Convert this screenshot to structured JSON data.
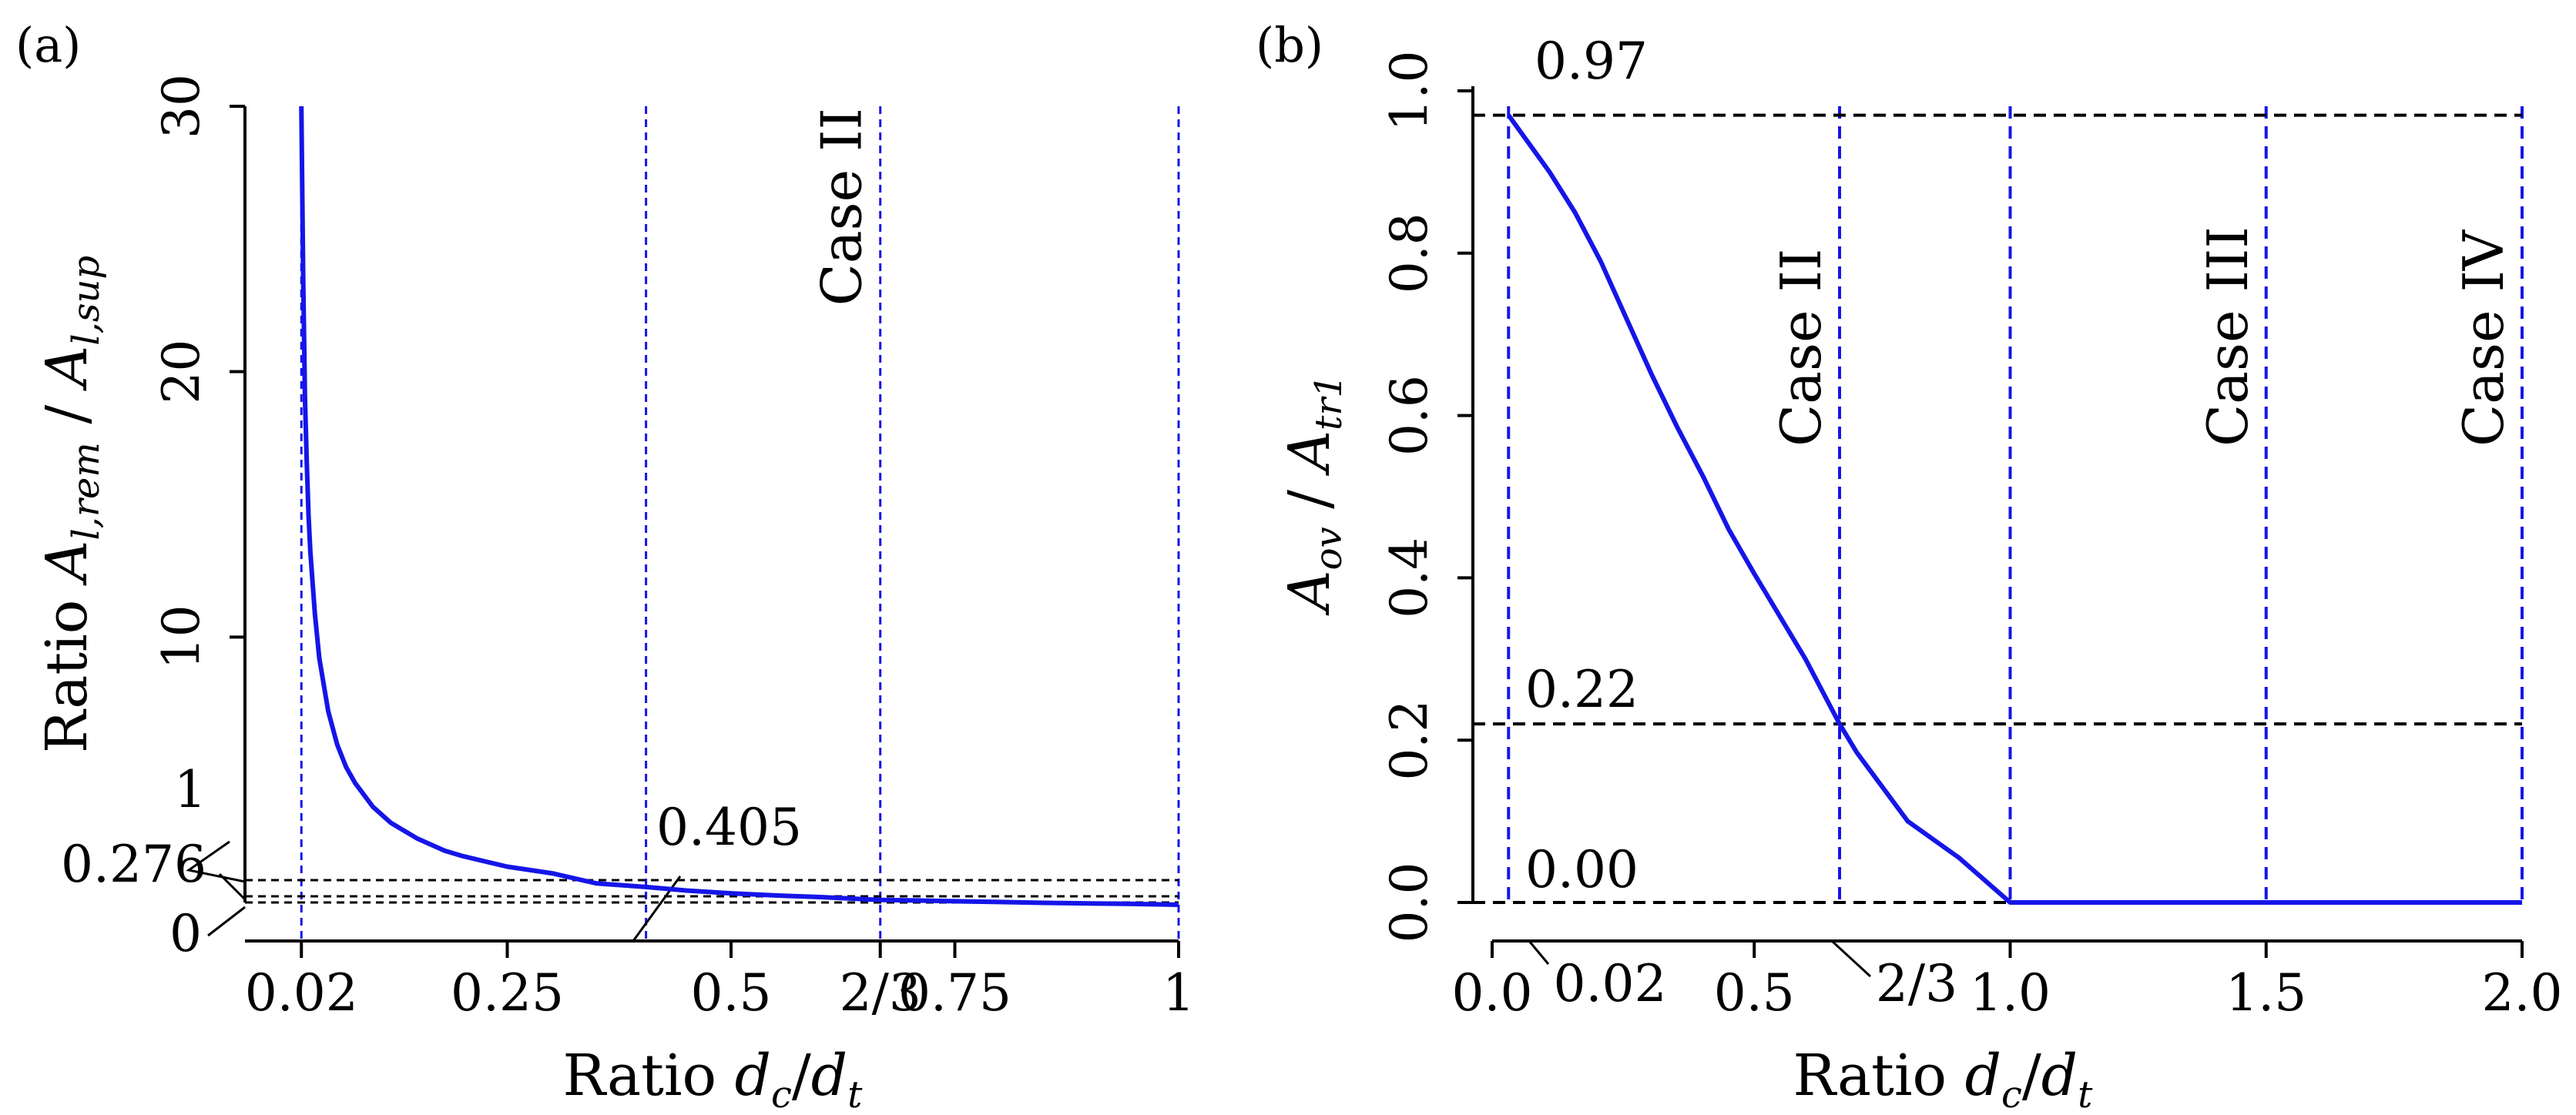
{
  "colors": {
    "curve": "#1515e8",
    "guide_blue": "#1515e8",
    "guide_black": "#000000",
    "axis": "#000000"
  },
  "chart_data": [
    {
      "type": "line",
      "panel_label": "(a)",
      "xlabel": "Ratio d_c/d_t",
      "ylabel": "Ratio A_l,rem / A_l,sup",
      "xlim": [
        0.0,
        1.0
      ],
      "ylim": [
        0,
        30
      ],
      "x_ticks": [
        {
          "value": 0.02,
          "label": "0.02"
        },
        {
          "value": 0.25,
          "label": "0.25"
        },
        {
          "value": 0.5,
          "label": "0.5"
        },
        {
          "value": 0.6667,
          "label": "2/3"
        },
        {
          "value": 0.75,
          "label": "0.75"
        },
        {
          "value": 1.0,
          "label": "1"
        }
      ],
      "y_ticks": [
        {
          "value": 10,
          "label": "10"
        },
        {
          "value": 20,
          "label": "20"
        },
        {
          "value": 30,
          "label": "30"
        }
      ],
      "y_annotations": [
        {
          "value": 1.0,
          "label": "1"
        },
        {
          "value": 0.276,
          "label": "0.276"
        },
        {
          "value": 0.0,
          "label": "0"
        }
      ],
      "horizontal_guides": [
        1.0,
        0.405,
        0.276
      ],
      "vertical_guides": [
        0.02,
        0.405,
        0.6667,
        1.0
      ],
      "point_annotations": [
        {
          "x": 0.405,
          "y": 1.0,
          "label": "0.405"
        }
      ],
      "case_labels": [
        {
          "x": 0.6667,
          "label": "Case II"
        }
      ],
      "series": [
        {
          "name": "A_l,rem / A_l,sup",
          "x": [
            0.02,
            0.022,
            0.024,
            0.026,
            0.028,
            0.03,
            0.035,
            0.04,
            0.05,
            0.06,
            0.07,
            0.08,
            0.1,
            0.12,
            0.15,
            0.18,
            0.2,
            0.25,
            0.3,
            0.35,
            0.405,
            0.45,
            0.5,
            0.55,
            0.6,
            0.6667,
            0.7,
            0.75,
            0.8,
            0.85,
            0.9,
            0.95,
            1.0
          ],
          "y": [
            30.0,
            23.5,
            19.0,
            16.6,
            14.6,
            13.2,
            10.9,
            9.2,
            7.2,
            5.95,
            5.1,
            4.5,
            3.6,
            3.0,
            2.4,
            1.95,
            1.75,
            1.35,
            1.1,
            0.88,
            0.75,
            0.62,
            0.52,
            0.44,
            0.38,
            0.276,
            0.26,
            0.23,
            0.2,
            0.17,
            0.15,
            0.13,
            0.1
          ]
        }
      ]
    },
    {
      "type": "line",
      "panel_label": "(b)",
      "xlabel": "Ratio d_c/d_t",
      "ylabel": "A_ov / A_tr1",
      "xlim": [
        0.0,
        2.0
      ],
      "ylim": [
        0.0,
        1.0
      ],
      "x_ticks": [
        {
          "value": 0.0,
          "label": "0.0"
        },
        {
          "value": 0.5,
          "label": "0.5"
        },
        {
          "value": 1.0,
          "label": "1.0"
        },
        {
          "value": 1.5,
          "label": "1.5"
        },
        {
          "value": 2.0,
          "label": "2.0"
        }
      ],
      "x_annotations": [
        {
          "value": 0.02,
          "label": "0.02"
        },
        {
          "value": 0.6667,
          "label": "2/3"
        }
      ],
      "y_ticks": [
        {
          "value": 0.0,
          "label": "0.0"
        },
        {
          "value": 0.2,
          "label": "0.2"
        },
        {
          "value": 0.4,
          "label": "0.4"
        },
        {
          "value": 0.6,
          "label": "0.6"
        },
        {
          "value": 0.8,
          "label": "0.8"
        },
        {
          "value": 1.0,
          "label": "1.0"
        }
      ],
      "horizontal_guides": [
        {
          "value": 0.97,
          "label": "0.97"
        },
        {
          "value": 0.22,
          "label": "0.22"
        },
        {
          "value": 0.0,
          "label": "0.00"
        }
      ],
      "vertical_guides": [
        0.02,
        0.6667,
        1.0,
        1.5,
        2.0
      ],
      "case_labels": [
        {
          "x": 0.6667,
          "label": "Case II"
        },
        {
          "x": 1.5,
          "label": "Case III"
        },
        {
          "x": 2.0,
          "label": "Case IV"
        }
      ],
      "series": [
        {
          "name": "A_ov / A_tr1",
          "x": [
            0.02,
            0.1,
            0.15,
            0.2,
            0.25,
            0.3,
            0.35,
            0.4,
            0.45,
            0.5,
            0.6,
            0.6667,
            0.7,
            0.8,
            0.9,
            1.0,
            1.5,
            2.0
          ],
          "y": [
            0.97,
            0.9,
            0.85,
            0.79,
            0.72,
            0.65,
            0.585,
            0.525,
            0.46,
            0.405,
            0.3,
            0.22,
            0.185,
            0.1,
            0.055,
            0.0,
            0.0,
            0.0
          ]
        }
      ]
    }
  ]
}
